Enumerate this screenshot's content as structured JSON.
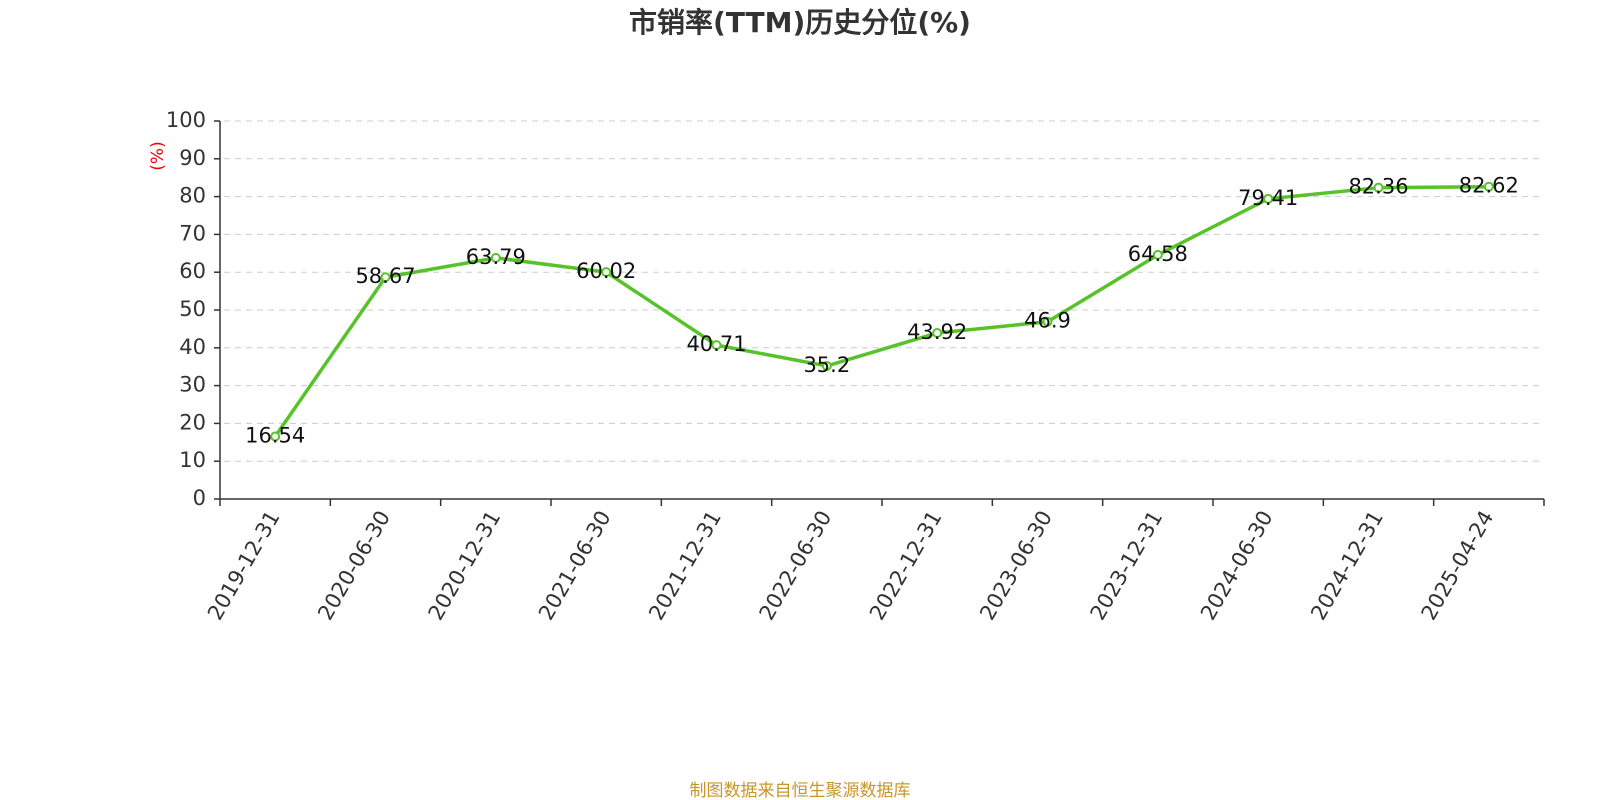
{
  "chart_data": {
    "type": "line",
    "title": "市销率(TTM)历史分位(%)",
    "y_label": "(%)",
    "categories": [
      "2019-12-31",
      "2020-06-30",
      "2020-12-31",
      "2021-06-30",
      "2021-12-31",
      "2022-06-30",
      "2022-12-31",
      "2023-06-30",
      "2023-12-31",
      "2024-06-30",
      "2024-12-31",
      "2025-04-24"
    ],
    "series": [
      {
        "name": "市销率(TTM)历史分位",
        "color": "#58c22a",
        "values": [
          16.54,
          58.67,
          63.79,
          60.02,
          40.71,
          35.2,
          43.92,
          46.9,
          64.58,
          79.41,
          82.36,
          82.62
        ]
      }
    ],
    "ylim": [
      0,
      100
    ],
    "yticks": [
      0,
      10,
      20,
      30,
      40,
      50,
      60,
      70,
      80,
      90,
      100
    ],
    "grid": true,
    "source": "制图数据来自恒生聚源数据库"
  }
}
